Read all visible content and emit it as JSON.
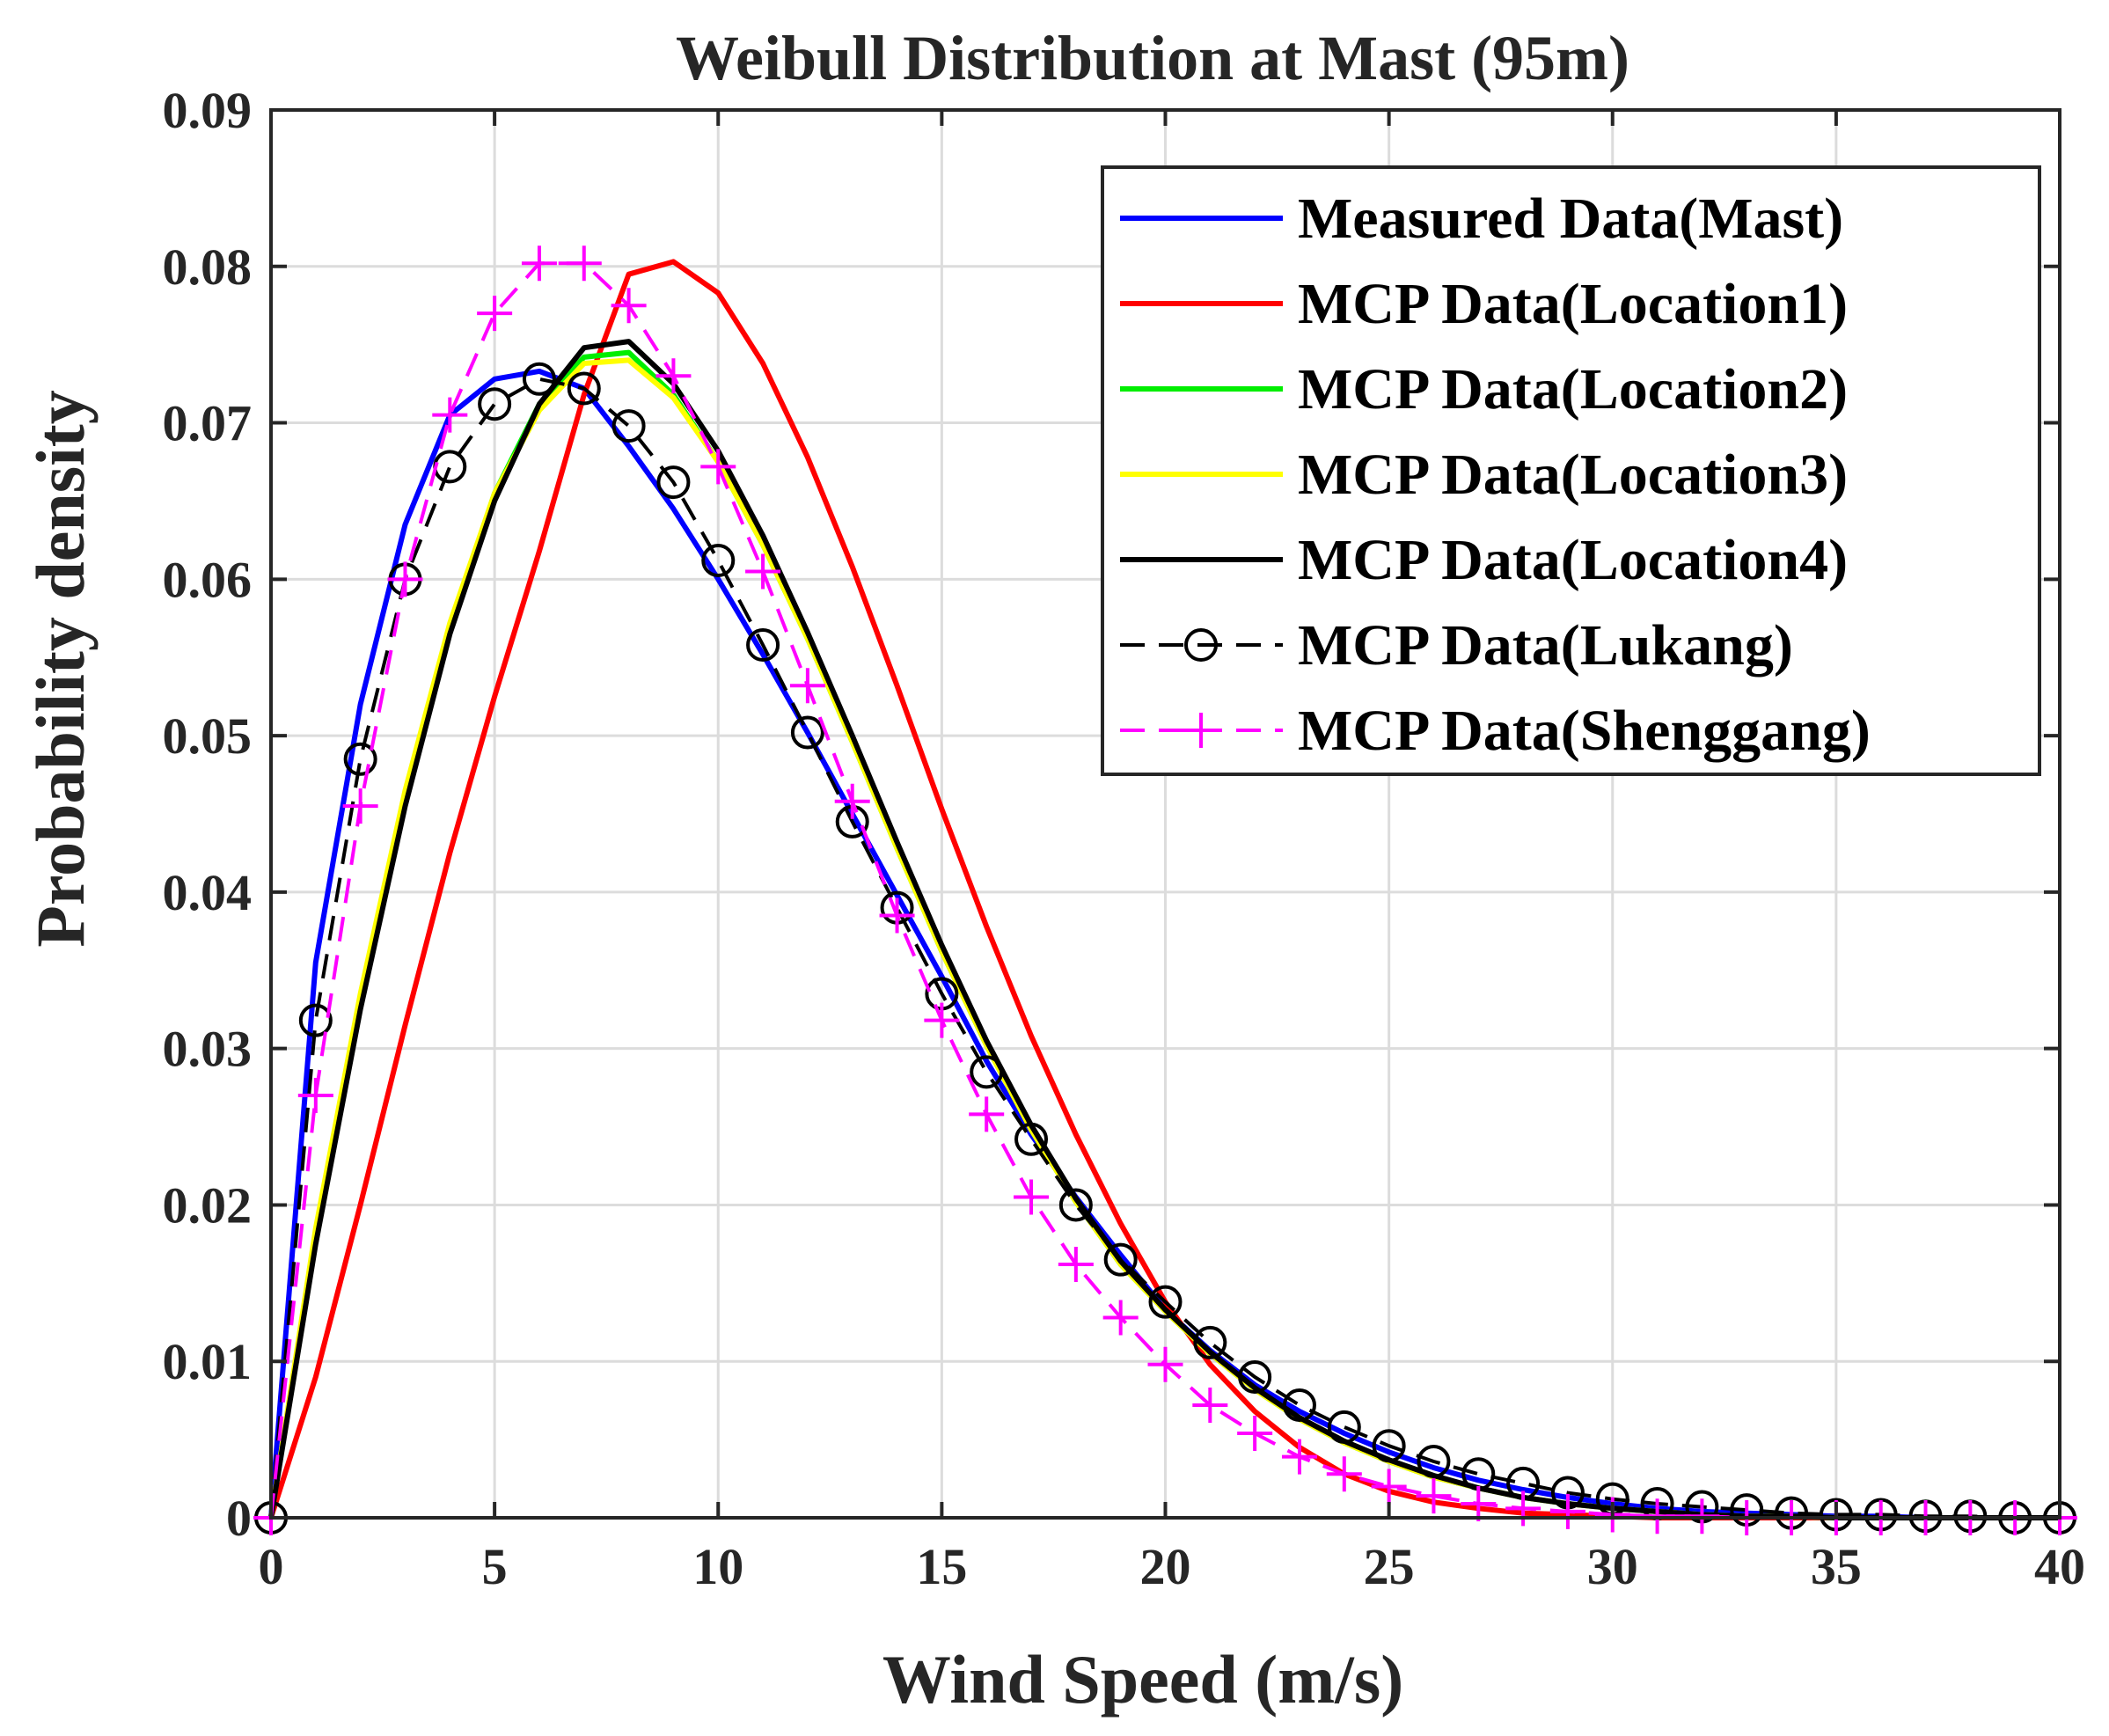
{
  "chart_data": {
    "type": "line",
    "title": "Weibull Distribution at Mast (95m)",
    "xlabel": "Wind Speed (m/s)",
    "ylabel": "Probability density",
    "xlim": [
      0,
      40
    ],
    "ylim": [
      0,
      0.09
    ],
    "xticks": [
      0,
      5,
      10,
      15,
      20,
      25,
      30,
      35,
      40
    ],
    "yticks": [
      0,
      0.01,
      0.02,
      0.03,
      0.04,
      0.05,
      0.06,
      0.07,
      0.08,
      0.09
    ],
    "ytick_labels": [
      "0",
      "0.01",
      "0.02",
      "0.03",
      "0.04",
      "0.05",
      "0.06",
      "0.07",
      "0.08",
      "0.09"
    ],
    "grid": true,
    "legend_position": "top-right",
    "x": [
      0,
      1,
      2,
      3,
      4,
      5,
      6,
      7,
      8,
      9,
      10,
      11,
      12,
      13,
      14,
      15,
      16,
      17,
      18,
      19,
      20,
      21,
      22,
      23,
      24,
      25,
      26,
      27,
      28,
      29,
      30,
      31,
      32,
      33,
      34,
      35,
      36,
      37,
      38,
      39,
      40
    ],
    "series": [
      {
        "name": "Measured Data(Mast)",
        "color": "#0000ff",
        "style": "solid",
        "marker": "none",
        "values": [
          0,
          0.0355,
          0.052,
          0.0635,
          0.0705,
          0.0728,
          0.0733,
          0.0722,
          0.0685,
          0.0645,
          0.06,
          0.0552,
          0.0502,
          0.045,
          0.0398,
          0.0346,
          0.0292,
          0.0245,
          0.0205,
          0.0168,
          0.0133,
          0.0107,
          0.0085,
          0.0068,
          0.0054,
          0.0042,
          0.0032,
          0.0024,
          0.0018,
          0.0013,
          0.0009,
          0.0006,
          0.0004,
          0.0003,
          0.0002,
          0.0001,
          0.0001,
          0,
          0,
          0,
          0
        ]
      },
      {
        "name": "MCP Data(Location1)",
        "color": "#ff0000",
        "style": "solid",
        "marker": "none",
        "values": [
          0,
          0.009,
          0.02,
          0.0315,
          0.0425,
          0.0525,
          0.0618,
          0.0718,
          0.0795,
          0.0803,
          0.0783,
          0.0738,
          0.0678,
          0.0608,
          0.0532,
          0.0453,
          0.0378,
          0.0308,
          0.0245,
          0.0188,
          0.0138,
          0.0098,
          0.0068,
          0.0045,
          0.0028,
          0.0017,
          0.001,
          0.0006,
          0.0003,
          0.0002,
          0.0001,
          0,
          0,
          0,
          0,
          0,
          0,
          0,
          0,
          0,
          0
        ]
      },
      {
        "name": "MCP Data(Location2)",
        "color": "#00ee00",
        "style": "solid",
        "marker": "none",
        "values": [
          0,
          0.018,
          0.033,
          0.046,
          0.057,
          0.0655,
          0.0712,
          0.0742,
          0.0745,
          0.0718,
          0.0675,
          0.0622,
          0.0562,
          0.0496,
          0.0428,
          0.0362,
          0.0302,
          0.0248,
          0.0202,
          0.0162,
          0.0132,
          0.0105,
          0.0082,
          0.0063,
          0.0048,
          0.0036,
          0.0026,
          0.0019,
          0.0013,
          0.0009,
          0.0006,
          0.0004,
          0.0002,
          0.0001,
          0.0001,
          0,
          0,
          0,
          0,
          0,
          0
        ]
      },
      {
        "name": "MCP Data(Location3)",
        "color": "#ffff00",
        "style": "solid",
        "marker": "none",
        "values": [
          0,
          0.0185,
          0.0335,
          0.0465,
          0.0572,
          0.0655,
          0.0708,
          0.0738,
          0.074,
          0.0716,
          0.0675,
          0.0622,
          0.0562,
          0.0496,
          0.0428,
          0.0362,
          0.0302,
          0.0248,
          0.0202,
          0.0162,
          0.0132,
          0.0105,
          0.0082,
          0.0063,
          0.0048,
          0.0036,
          0.0026,
          0.0019,
          0.0013,
          0.0009,
          0.0006,
          0.0004,
          0.0002,
          0.0001,
          0.0001,
          0,
          0,
          0,
          0,
          0,
          0
        ]
      },
      {
        "name": "MCP Data(Location4)",
        "color": "#000000",
        "style": "solid",
        "marker": "none",
        "values": [
          0,
          0.0175,
          0.0325,
          0.0455,
          0.0565,
          0.065,
          0.0712,
          0.0748,
          0.0752,
          0.0725,
          0.0682,
          0.0628,
          0.0566,
          0.05,
          0.0432,
          0.0366,
          0.0305,
          0.0251,
          0.0204,
          0.0164,
          0.0133,
          0.0106,
          0.0083,
          0.0064,
          0.0049,
          0.0037,
          0.0027,
          0.0019,
          0.0013,
          0.0009,
          0.0006,
          0.0004,
          0.0002,
          0.0001,
          0.0001,
          0,
          0,
          0,
          0,
          0,
          0
        ]
      },
      {
        "name": "MCP Data(Lukang)",
        "color": "#000000",
        "style": "dashed",
        "marker": "circle",
        "values": [
          0,
          0.0318,
          0.0485,
          0.06,
          0.0672,
          0.0712,
          0.0728,
          0.0722,
          0.0698,
          0.0662,
          0.0612,
          0.0558,
          0.0502,
          0.0445,
          0.039,
          0.0335,
          0.0285,
          0.0242,
          0.02,
          0.0165,
          0.0138,
          0.0112,
          0.009,
          0.0072,
          0.0058,
          0.0046,
          0.0036,
          0.0028,
          0.0022,
          0.0016,
          0.0012,
          0.0009,
          0.0007,
          0.0005,
          0.0003,
          0.0002,
          0.0002,
          0.0001,
          0.0001,
          0,
          0
        ]
      },
      {
        "name": "MCP Data(Shenggang)",
        "color": "#ff00ff",
        "style": "dashed",
        "marker": "plus",
        "values": [
          0,
          0.027,
          0.0455,
          0.06,
          0.0705,
          0.077,
          0.0802,
          0.0802,
          0.0775,
          0.073,
          0.0672,
          0.0605,
          0.0532,
          0.0458,
          0.0385,
          0.0318,
          0.0258,
          0.0205,
          0.0162,
          0.0128,
          0.0098,
          0.0072,
          0.0054,
          0.0039,
          0.0028,
          0.002,
          0.0014,
          0.0009,
          0.0006,
          0.0004,
          0.0002,
          0.0001,
          0.0001,
          0,
          0,
          0,
          0,
          0,
          0,
          0,
          0
        ]
      }
    ]
  }
}
